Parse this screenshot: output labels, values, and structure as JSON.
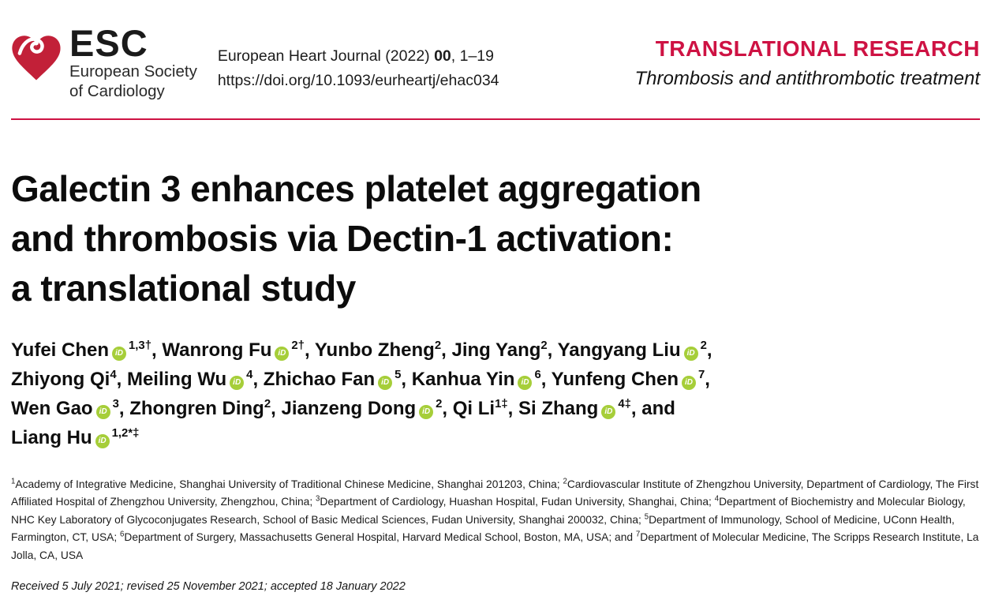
{
  "colors": {
    "brand_red": "#ce1243",
    "heart_red": "#c22038",
    "orcid_green": "#a6ce39"
  },
  "header": {
    "logo": {
      "abbr": "ESC",
      "society_line1": "European Society",
      "society_line2": "of Cardiology",
      "heart_icon": "esc-heart-logo"
    },
    "citation": {
      "prefix": "European Heart Journal (2022) ",
      "volume": "00",
      "pages": ", 1–19",
      "doi": "https://doi.org/10.1093/eurheartj/ehac034"
    },
    "category": "TRANSLATIONAL RESEARCH",
    "subcategory": "Thrombosis and antithrombotic treatment"
  },
  "title": {
    "line1": "Galectin 3 enhances platelet aggregation",
    "line2": "and thrombosis via Dectin-1 activation:",
    "line3": "a translational study"
  },
  "authors": [
    {
      "name": "Yufei Chen",
      "orcid": true,
      "sup": "1,3†",
      "sep": ", "
    },
    {
      "name": "Wanrong Fu",
      "orcid": true,
      "sup": "2†",
      "sep": ", "
    },
    {
      "name": "Yunbo Zheng",
      "orcid": false,
      "sup": "2",
      "sep": ", "
    },
    {
      "name": "Jing Yang",
      "orcid": false,
      "sup": "2",
      "sep": ", "
    },
    {
      "name": "Yangyang Liu",
      "orcid": true,
      "sup": "2",
      "sep": ",",
      "break_after": true
    },
    {
      "name": "Zhiyong Qi",
      "orcid": false,
      "sup": "4",
      "sep": ", "
    },
    {
      "name": "Meiling Wu",
      "orcid": true,
      "sup": "4",
      "sep": ", "
    },
    {
      "name": "Zhichao Fan",
      "orcid": true,
      "sup": "5",
      "sep": ", "
    },
    {
      "name": "Kanhua Yin",
      "orcid": true,
      "sup": "6",
      "sep": ", "
    },
    {
      "name": "Yunfeng Chen",
      "orcid": true,
      "sup": "7",
      "sep": ",",
      "break_after": true
    },
    {
      "name": "Wen Gao",
      "orcid": true,
      "sup": "3",
      "sep": ", "
    },
    {
      "name": "Zhongren Ding",
      "orcid": false,
      "sup": "2",
      "sep": ", "
    },
    {
      "name": "Jianzeng Dong",
      "orcid": true,
      "sup": "2",
      "sep": ", "
    },
    {
      "name": "Qi Li",
      "orcid": false,
      "sup": "1‡",
      "sep": ", "
    },
    {
      "name": "Si Zhang",
      "orcid": true,
      "sup": "4‡",
      "sep": ", and",
      "break_after": true
    },
    {
      "name": "Liang Hu",
      "orcid": true,
      "sup": "1,2*‡",
      "sep": ""
    }
  ],
  "affiliations": [
    {
      "sup": "1",
      "text": "Academy of Integrative Medicine, Shanghai University of Traditional Chinese Medicine, Shanghai 201203, China; "
    },
    {
      "sup": "2",
      "text": "Cardiovascular Institute of Zhengzhou University, Department of Cardiology, The First Affiliated Hospital of Zhengzhou University, Zhengzhou, China; "
    },
    {
      "sup": "3",
      "text": "Department of Cardiology, Huashan Hospital, Fudan University, Shanghai, China; "
    },
    {
      "sup": "4",
      "text": "Department of Biochemistry and Molecular Biology, NHC Key Laboratory of Glycoconjugates Research, School of Basic Medical Sciences, Fudan University, Shanghai 200032, China; "
    },
    {
      "sup": "5",
      "text": "Department of Immunology, School of Medicine, UConn Health, Farmington, CT, USA; "
    },
    {
      "sup": "6",
      "text": "Department of Surgery, Massachusetts General Hospital, Harvard Medical School, Boston, MA, USA; and "
    },
    {
      "sup": "7",
      "text": "Department of Molecular Medicine, The Scripps Research Institute, La Jolla, CA, USA"
    }
  ],
  "dates": "Received 5 July 2021; revised 25 November 2021; accepted 18 January 2022"
}
